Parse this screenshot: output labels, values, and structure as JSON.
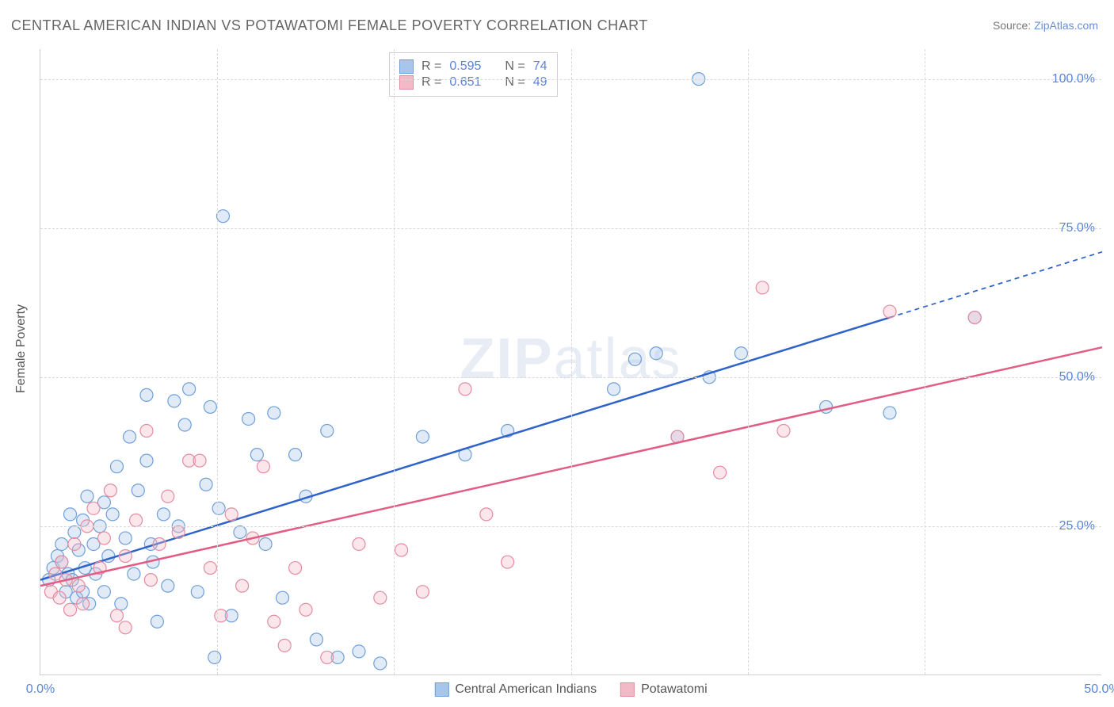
{
  "title": "CENTRAL AMERICAN INDIAN VS POTAWATOMI FEMALE POVERTY CORRELATION CHART",
  "source_label": "Source: ",
  "source_name": "ZipAtlas.com",
  "y_axis_title": "Female Poverty",
  "watermark": {
    "bold": "ZIP",
    "rest": "atlas"
  },
  "chart": {
    "type": "scatter",
    "xlim": [
      0,
      50
    ],
    "ylim": [
      0,
      105
    ],
    "x_ticks": [
      0,
      50
    ],
    "x_tick_labels": [
      "0.0%",
      "50.0%"
    ],
    "y_ticks": [
      25,
      50,
      75,
      100
    ],
    "y_tick_labels": [
      "25.0%",
      "50.0%",
      "75.0%",
      "100.0%"
    ],
    "x_gridlines": [
      8.33,
      16.66,
      25,
      33.33,
      41.66
    ],
    "background_color": "#ffffff",
    "grid_color": "#d9d9d9",
    "axis_color": "#cfcfcf",
    "tick_label_color": "#5b84d8",
    "marker_radius": 8,
    "line_width": 2.5
  },
  "series": [
    {
      "name": "Central American Indians",
      "color_fill": "#a8c6ec",
      "color_stroke": "#6f9fd8",
      "line_color": "#2f63c9",
      "R": "0.595",
      "N": "74",
      "trend": {
        "x1": 0,
        "y1": 16,
        "x2_solid": 40,
        "y2_solid": 60,
        "x2_dash": 50,
        "y2_dash": 71
      },
      "points": [
        [
          0.4,
          16
        ],
        [
          0.6,
          18
        ],
        [
          0.8,
          20
        ],
        [
          1,
          19
        ],
        [
          1,
          22
        ],
        [
          1.2,
          14
        ],
        [
          1.3,
          17
        ],
        [
          1.4,
          27
        ],
        [
          1.5,
          16
        ],
        [
          1.6,
          24
        ],
        [
          1.7,
          13
        ],
        [
          1.8,
          21
        ],
        [
          2,
          26
        ],
        [
          2,
          14
        ],
        [
          2.1,
          18
        ],
        [
          2.2,
          30
        ],
        [
          2.3,
          12
        ],
        [
          2.5,
          22
        ],
        [
          2.6,
          17
        ],
        [
          2.8,
          25
        ],
        [
          3,
          14
        ],
        [
          3,
          29
        ],
        [
          3.2,
          20
        ],
        [
          3.4,
          27
        ],
        [
          3.6,
          35
        ],
        [
          3.8,
          12
        ],
        [
          4,
          23
        ],
        [
          4.2,
          40
        ],
        [
          4.4,
          17
        ],
        [
          4.6,
          31
        ],
        [
          5,
          36
        ],
        [
          5,
          47
        ],
        [
          5.2,
          22
        ],
        [
          5.3,
          19
        ],
        [
          5.5,
          9
        ],
        [
          5.8,
          27
        ],
        [
          6,
          15
        ],
        [
          6.3,
          46
        ],
        [
          6.5,
          25
        ],
        [
          6.8,
          42
        ],
        [
          7,
          48
        ],
        [
          7.4,
          14
        ],
        [
          7.8,
          32
        ],
        [
          8,
          45
        ],
        [
          8.2,
          3
        ],
        [
          8.4,
          28
        ],
        [
          8.6,
          77
        ],
        [
          9,
          10
        ],
        [
          9.4,
          24
        ],
        [
          9.8,
          43
        ],
        [
          10.2,
          37
        ],
        [
          10.6,
          22
        ],
        [
          11,
          44
        ],
        [
          11.4,
          13
        ],
        [
          12,
          37
        ],
        [
          12.5,
          30
        ],
        [
          13,
          6
        ],
        [
          13.5,
          41
        ],
        [
          14,
          3
        ],
        [
          15,
          4
        ],
        [
          16,
          2
        ],
        [
          18,
          40
        ],
        [
          20,
          37
        ],
        [
          22,
          41
        ],
        [
          27,
          48
        ],
        [
          28,
          53
        ],
        [
          29,
          54
        ],
        [
          30,
          40
        ],
        [
          31,
          100
        ],
        [
          31.5,
          50
        ],
        [
          33,
          54
        ],
        [
          37,
          45
        ],
        [
          40,
          44
        ],
        [
          44,
          60
        ]
      ]
    },
    {
      "name": "Potawatomi",
      "color_fill": "#f4b9c7",
      "color_stroke": "#e38ca1",
      "line_color": "#e15d84",
      "R": "0.651",
      "N": "49",
      "trend": {
        "x1": 0,
        "y1": 15,
        "x2_solid": 50,
        "y2_solid": 55,
        "x2_dash": 50,
        "y2_dash": 55
      },
      "points": [
        [
          0.5,
          14
        ],
        [
          0.7,
          17
        ],
        [
          0.9,
          13
        ],
        [
          1,
          19
        ],
        [
          1.2,
          16
        ],
        [
          1.4,
          11
        ],
        [
          1.6,
          22
        ],
        [
          1.8,
          15
        ],
        [
          2,
          12
        ],
        [
          2.2,
          25
        ],
        [
          2.5,
          28
        ],
        [
          2.8,
          18
        ],
        [
          3,
          23
        ],
        [
          3.3,
          31
        ],
        [
          3.6,
          10
        ],
        [
          4,
          20
        ],
        [
          4,
          8
        ],
        [
          4.5,
          26
        ],
        [
          5,
          41
        ],
        [
          5.2,
          16
        ],
        [
          5.6,
          22
        ],
        [
          6,
          30
        ],
        [
          6.5,
          24
        ],
        [
          7,
          36
        ],
        [
          7.5,
          36
        ],
        [
          8,
          18
        ],
        [
          8.5,
          10
        ],
        [
          9,
          27
        ],
        [
          9.5,
          15
        ],
        [
          10,
          23
        ],
        [
          10.5,
          35
        ],
        [
          11,
          9
        ],
        [
          11.5,
          5
        ],
        [
          12,
          18
        ],
        [
          12.5,
          11
        ],
        [
          13.5,
          3
        ],
        [
          15,
          22
        ],
        [
          16,
          13
        ],
        [
          17,
          21
        ],
        [
          18,
          14
        ],
        [
          20,
          48
        ],
        [
          21,
          27
        ],
        [
          22,
          19
        ],
        [
          30,
          40
        ],
        [
          32,
          34
        ],
        [
          34,
          65
        ],
        [
          35,
          41
        ],
        [
          40,
          61
        ],
        [
          44,
          60
        ]
      ]
    }
  ],
  "stats_legend": {
    "r_label": "R =",
    "n_label": "N ="
  },
  "bottom_legend": {
    "items": [
      "Central American Indians",
      "Potawatomi"
    ]
  }
}
